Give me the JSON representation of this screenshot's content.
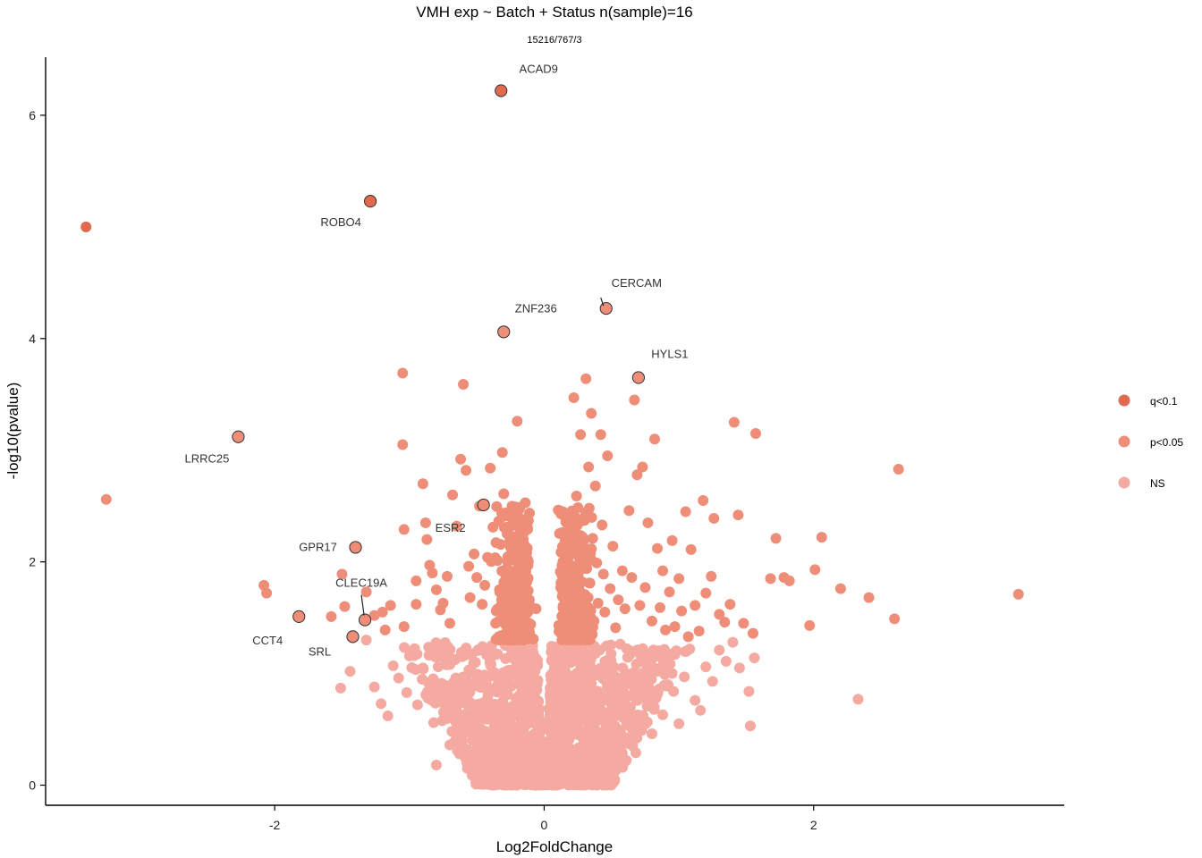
{
  "chart_data": {
    "type": "scatter",
    "title": "VMH exp ~ Batch + Status n(sample)=16",
    "subtitle": "15216/767/3",
    "xlabel": "Log2FoldChange",
    "ylabel": "-log10(pvalue)",
    "xlim": [
      -3.7,
      3.86
    ],
    "ylim": [
      -0.18,
      6.52
    ],
    "x_ticks": [
      -2,
      0,
      2
    ],
    "y_ticks": [
      0,
      2,
      4,
      6
    ],
    "x_tick_labels": [
      "-2",
      "0",
      "2"
    ],
    "y_tick_labels": [
      "0",
      "2",
      "4",
      "6"
    ],
    "legend": {
      "placement": "right",
      "entries": [
        {
          "label": "q<0.1",
          "color": "#E06A4E"
        },
        {
          "label": "p<0.05",
          "color": "#EE8E79"
        },
        {
          "label": "NS",
          "color": "#F4AAA0"
        }
      ]
    },
    "series": [
      {
        "name": "q<0.1",
        "color": "#E06A4E",
        "points": [
          [
            -3.4,
            5.0
          ],
          [
            -0.32,
            6.22
          ],
          [
            -1.29,
            5.23
          ]
        ]
      },
      {
        "name": "p<0.05",
        "color": "#EE8E79",
        "points": [
          [
            -3.25,
            2.56
          ],
          [
            -2.27,
            3.12
          ],
          [
            -2.08,
            1.79
          ],
          [
            -2.06,
            1.72
          ],
          [
            -1.82,
            1.51
          ],
          [
            -1.58,
            1.51
          ],
          [
            -1.5,
            1.89
          ],
          [
            -1.48,
            1.6
          ],
          [
            -1.4,
            2.13
          ],
          [
            -1.33,
            1.48
          ],
          [
            -1.32,
            1.73
          ],
          [
            -1.26,
            1.52
          ],
          [
            -1.2,
            1.55
          ],
          [
            -1.18,
            1.39
          ],
          [
            -1.14,
            1.61
          ],
          [
            -1.05,
            3.69
          ],
          [
            -1.05,
            3.05
          ],
          [
            -1.04,
            2.29
          ],
          [
            -1.04,
            1.42
          ],
          [
            -0.95,
            1.83
          ],
          [
            -0.95,
            1.62
          ],
          [
            -0.9,
            2.7
          ],
          [
            -0.88,
            2.35
          ],
          [
            -0.87,
            2.2
          ],
          [
            -0.85,
            1.97
          ],
          [
            -0.83,
            1.9
          ],
          [
            -0.8,
            1.75
          ],
          [
            -0.77,
            1.57
          ],
          [
            -0.75,
            1.63
          ],
          [
            -0.72,
            1.87
          ],
          [
            -0.7,
            1.45
          ],
          [
            -0.68,
            2.6
          ],
          [
            -0.65,
            2.32
          ],
          [
            -0.62,
            2.92
          ],
          [
            -0.6,
            3.59
          ],
          [
            -0.58,
            2.82
          ],
          [
            -0.56,
            1.96
          ],
          [
            -0.55,
            1.68
          ],
          [
            -0.52,
            2.07
          ],
          [
            -0.5,
            1.86
          ],
          [
            -0.48,
            2.5
          ],
          [
            -0.46,
            1.62
          ],
          [
            -0.44,
            1.79
          ],
          [
            -0.42,
            2.04
          ],
          [
            -0.4,
            2.84
          ],
          [
            -0.38,
            2.31
          ],
          [
            -0.36,
            1.45
          ],
          [
            -0.33,
            1.73
          ],
          [
            -0.31,
            2.98
          ],
          [
            -0.3,
            2.61
          ],
          [
            -0.28,
            2.44
          ],
          [
            -0.27,
            2.0
          ],
          [
            -0.25,
            2.13
          ],
          [
            -0.24,
            1.9
          ],
          [
            -0.22,
            1.55
          ],
          [
            -0.21,
            1.74
          ],
          [
            -0.2,
            3.26
          ],
          [
            -0.19,
            2.06
          ],
          [
            -0.18,
            2.28
          ],
          [
            -0.17,
            1.62
          ],
          [
            -0.16,
            1.5
          ],
          [
            -0.15,
            1.83
          ],
          [
            -0.14,
            2.53
          ],
          [
            -0.13,
            1.36
          ],
          [
            -0.12,
            1.97
          ],
          [
            -0.11,
            1.66
          ],
          [
            -0.1,
            1.44
          ],
          [
            -0.08,
            1.31
          ],
          [
            -0.06,
            1.58
          ],
          [
            0.13,
            1.35
          ],
          [
            0.14,
            1.6
          ],
          [
            0.16,
            1.87
          ],
          [
            0.18,
            2.15
          ],
          [
            0.2,
            2.33
          ],
          [
            0.21,
            1.52
          ],
          [
            0.22,
            3.47
          ],
          [
            0.23,
            1.74
          ],
          [
            0.24,
            2.59
          ],
          [
            0.25,
            1.43
          ],
          [
            0.26,
            2.04
          ],
          [
            0.27,
            3.14
          ],
          [
            0.28,
            1.68
          ],
          [
            0.29,
            1.94
          ],
          [
            0.3,
            2.4
          ],
          [
            0.31,
            3.64
          ],
          [
            0.32,
            1.57
          ],
          [
            0.33,
            2.85
          ],
          [
            0.34,
            1.81
          ],
          [
            0.35,
            3.33
          ],
          [
            0.36,
            2.21
          ],
          [
            0.37,
            1.47
          ],
          [
            0.38,
            2.68
          ],
          [
            0.39,
            1.99
          ],
          [
            0.4,
            1.63
          ],
          [
            0.42,
            3.14
          ],
          [
            0.43,
            2.33
          ],
          [
            0.44,
            1.89
          ],
          [
            0.45,
            1.55
          ],
          [
            0.47,
            2.95
          ],
          [
            0.49,
            1.76
          ],
          [
            0.51,
            2.14
          ],
          [
            0.53,
            1.41
          ],
          [
            0.55,
            1.66
          ],
          [
            0.58,
            1.92
          ],
          [
            0.6,
            1.58
          ],
          [
            0.63,
            2.46
          ],
          [
            0.65,
            1.86
          ],
          [
            0.67,
            3.45
          ],
          [
            0.69,
            2.78
          ],
          [
            0.71,
            1.61
          ],
          [
            0.73,
            2.85
          ],
          [
            0.75,
            1.77
          ],
          [
            0.77,
            2.35
          ],
          [
            0.8,
            1.47
          ],
          [
            0.82,
            3.1
          ],
          [
            0.84,
            2.12
          ],
          [
            0.86,
            1.59
          ],
          [
            0.88,
            1.92
          ],
          [
            0.9,
            1.39
          ],
          [
            0.93,
            1.73
          ],
          [
            0.95,
            2.19
          ],
          [
            0.97,
            1.42
          ],
          [
            1.0,
            1.85
          ],
          [
            1.02,
            1.56
          ],
          [
            1.05,
            2.45
          ],
          [
            1.07,
            1.33
          ],
          [
            1.09,
            2.11
          ],
          [
            1.12,
            1.61
          ],
          [
            1.15,
            1.38
          ],
          [
            1.18,
            2.55
          ],
          [
            1.2,
            1.72
          ],
          [
            1.24,
            1.87
          ],
          [
            1.26,
            2.39
          ],
          [
            1.3,
            1.53
          ],
          [
            1.34,
            1.46
          ],
          [
            1.38,
            1.62
          ],
          [
            1.41,
            3.25
          ],
          [
            1.44,
            2.42
          ],
          [
            1.48,
            1.45
          ],
          [
            1.55,
            1.36
          ],
          [
            1.57,
            3.15
          ],
          [
            1.68,
            1.85
          ],
          [
            1.72,
            2.21
          ],
          [
            1.78,
            1.86
          ],
          [
            1.82,
            1.83
          ],
          [
            1.97,
            1.43
          ],
          [
            2.01,
            1.93
          ],
          [
            2.06,
            2.22
          ],
          [
            2.2,
            1.76
          ],
          [
            2.41,
            1.68
          ],
          [
            2.6,
            1.49
          ],
          [
            2.63,
            2.83
          ],
          [
            3.52,
            1.71
          ]
        ]
      },
      {
        "name": "NS",
        "color": "#F4AAA0",
        "points": [
          [
            -1.51,
            0.87
          ],
          [
            -1.44,
            1.02
          ],
          [
            -1.32,
            1.3
          ],
          [
            -1.26,
            0.88
          ],
          [
            -1.21,
            0.73
          ],
          [
            -1.16,
            0.62
          ],
          [
            -1.12,
            1.07
          ],
          [
            -1.08,
            0.96
          ],
          [
            -1.02,
            0.83
          ],
          [
            -0.98,
            1.18
          ],
          [
            -0.94,
            0.72
          ],
          [
            -0.9,
            1.05
          ],
          [
            -0.86,
            0.92
          ],
          [
            -0.82,
            0.56
          ],
          [
            -0.8,
            0.18
          ],
          [
            -0.78,
            1.2
          ],
          [
            -0.74,
            0.8
          ],
          [
            -0.7,
            0.36
          ],
          [
            -0.67,
            1.12
          ],
          [
            -0.64,
            0.63
          ],
          [
            -0.6,
            0.97
          ],
          [
            -0.57,
            0.15
          ],
          [
            -0.54,
            0.48
          ],
          [
            -0.51,
            1.1
          ],
          [
            -0.48,
            0.71
          ],
          [
            -0.45,
            0.29
          ],
          [
            -0.42,
            0.88
          ],
          [
            -0.39,
            1.25
          ],
          [
            -0.36,
            0.52
          ],
          [
            -0.33,
            0.19
          ],
          [
            -0.3,
            0.95
          ],
          [
            -0.27,
            0.64
          ],
          [
            -0.24,
            0.37
          ],
          [
            -0.21,
            1.16
          ],
          [
            -0.18,
            0.81
          ],
          [
            -0.15,
            0.26
          ],
          [
            -0.12,
            0.55
          ],
          [
            -0.09,
            0.9
          ],
          [
            -0.06,
            0.42
          ],
          [
            -0.04,
            0.12
          ],
          [
            -0.02,
            0.05
          ],
          [
            0.01,
            0.02
          ],
          [
            0.03,
            0.1
          ],
          [
            0.05,
            0.33
          ],
          [
            0.08,
            0.6
          ],
          [
            0.11,
            0.87
          ],
          [
            0.14,
            1.21
          ],
          [
            0.17,
            0.44
          ],
          [
            0.2,
            0.7
          ],
          [
            0.23,
            0.16
          ],
          [
            0.26,
            1.02
          ],
          [
            0.29,
            0.58
          ],
          [
            0.32,
            0.32
          ],
          [
            0.35,
            0.91
          ],
          [
            0.38,
            1.18
          ],
          [
            0.41,
            0.47
          ],
          [
            0.44,
            0.76
          ],
          [
            0.47,
            0.21
          ],
          [
            0.5,
            1.08
          ],
          [
            0.53,
            0.62
          ],
          [
            0.56,
            0.39
          ],
          [
            0.6,
            0.98
          ],
          [
            0.64,
            0.7
          ],
          [
            0.68,
            0.29
          ],
          [
            0.72,
            1.15
          ],
          [
            0.76,
            0.83
          ],
          [
            0.8,
            0.46
          ],
          [
            0.84,
            1.02
          ],
          [
            0.88,
            0.63
          ],
          [
            0.92,
            1.18
          ],
          [
            0.96,
            0.84
          ],
          [
            1.0,
            0.55
          ],
          [
            1.04,
            0.97
          ],
          [
            1.08,
            1.22
          ],
          [
            1.12,
            0.76
          ],
          [
            1.16,
            0.67
          ],
          [
            1.2,
            1.06
          ],
          [
            1.25,
            0.93
          ],
          [
            1.3,
            1.21
          ],
          [
            1.35,
            1.11
          ],
          [
            1.4,
            1.28
          ],
          [
            1.45,
            1.05
          ],
          [
            1.52,
            0.84
          ],
          [
            1.56,
            1.14
          ],
          [
            1.53,
            0.53
          ],
          [
            2.33,
            0.77
          ]
        ]
      }
    ],
    "annotations": [
      {
        "gene": "ACAD9",
        "x": -0.32,
        "y": 6.22
      },
      {
        "gene": "ROBO4",
        "x": -1.29,
        "y": 5.23
      },
      {
        "gene": "CERCAM",
        "x": 0.46,
        "y": 4.27
      },
      {
        "gene": "ZNF236",
        "x": -0.3,
        "y": 4.06
      },
      {
        "gene": "HYLS1",
        "x": 0.7,
        "y": 3.65
      },
      {
        "gene": "LRRC25",
        "x": -2.27,
        "y": 3.12
      },
      {
        "gene": "ESR2",
        "x": -0.45,
        "y": 2.51
      },
      {
        "gene": "GPR17",
        "x": -1.4,
        "y": 2.13
      },
      {
        "gene": "CLEC19A",
        "x": -1.33,
        "y": 1.48
      },
      {
        "gene": "CCT4",
        "x": -1.82,
        "y": 1.51
      },
      {
        "gene": "SRL",
        "x": -1.42,
        "y": 1.33
      }
    ]
  }
}
